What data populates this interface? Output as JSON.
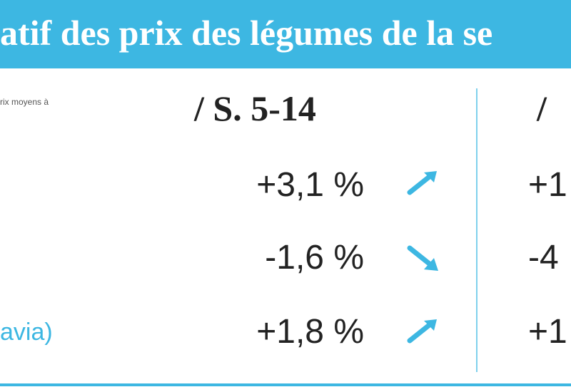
{
  "header": {
    "title": "atif des prix des légumes de la se"
  },
  "table": {
    "note": "rix moyens à",
    "columns": [
      "/ S. 5-14",
      "/"
    ],
    "rows": [
      {
        "values": [
          "+3,1 %",
          "+1"
        ]
      },
      {
        "values": [
          "-1,6 %",
          "-4"
        ]
      },
      {
        "label": "avia)",
        "values": [
          "+1,8 %",
          "+1"
        ]
      }
    ]
  }
}
